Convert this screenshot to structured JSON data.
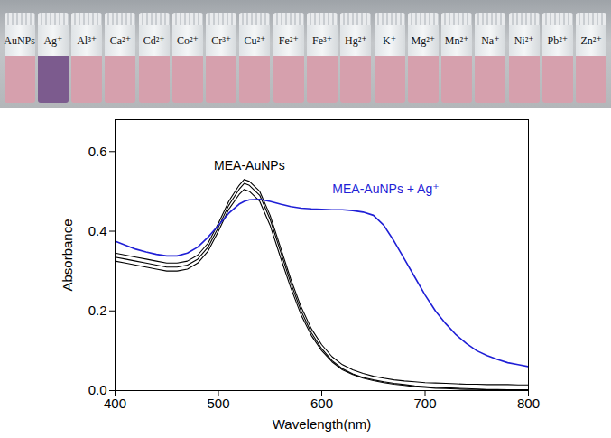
{
  "vials": {
    "labels": [
      "AuNPs",
      "Ag⁺",
      "Al³⁺",
      "Ca²⁺",
      "Cd²⁺",
      "Co²⁺",
      "Cr³⁺",
      "Cu²⁺",
      "Fe²⁺",
      "Fe³⁺",
      "Hg²⁺",
      "K⁺",
      "Mg²⁺",
      "Mn²⁺",
      "Na⁺",
      "Ni²⁺",
      "Pb²⁺",
      "Zn²⁺"
    ],
    "colors": [
      "#d6a0ad",
      "#7c5b8e",
      "#d6a0ad",
      "#d6a0ad",
      "#d6a0ad",
      "#d6a0ad",
      "#d6a0ad",
      "#d6a0ad",
      "#d6a0ad",
      "#d6a0ad",
      "#d6a0ad",
      "#d6a0ad",
      "#d6a0ad",
      "#d6a0ad",
      "#d6a0ad",
      "#d6a0ad",
      "#d6a0ad",
      "#d6a0ad"
    ]
  },
  "chart_data": {
    "type": "line",
    "x_label": "Wavelength(nm)",
    "y_label": "Absorbance",
    "x": [
      400,
      410,
      420,
      430,
      440,
      450,
      460,
      470,
      480,
      490,
      500,
      510,
      520,
      525,
      530,
      540,
      550,
      560,
      570,
      580,
      590,
      600,
      610,
      620,
      630,
      640,
      650,
      660,
      670,
      680,
      690,
      700,
      710,
      720,
      730,
      740,
      750,
      760,
      770,
      780,
      790,
      800
    ],
    "series": [
      {
        "color": "#000000",
        "values": [
          0.335,
          0.33,
          0.325,
          0.32,
          0.315,
          0.31,
          0.31,
          0.315,
          0.33,
          0.36,
          0.41,
          0.465,
          0.505,
          0.52,
          0.515,
          0.49,
          0.43,
          0.35,
          0.27,
          0.2,
          0.145,
          0.105,
          0.075,
          0.055,
          0.042,
          0.033,
          0.027,
          0.022,
          0.018,
          0.015,
          0.012,
          0.01,
          0.008,
          0.007,
          0.006,
          0.005,
          0.004,
          0.003,
          0.003,
          0.002,
          0.002,
          0.002
        ]
      },
      {
        "color": "#000000",
        "values": [
          0.345,
          0.34,
          0.335,
          0.33,
          0.325,
          0.32,
          0.32,
          0.325,
          0.34,
          0.37,
          0.42,
          0.475,
          0.515,
          0.53,
          0.525,
          0.5,
          0.44,
          0.36,
          0.28,
          0.21,
          0.155,
          0.115,
          0.085,
          0.065,
          0.052,
          0.043,
          0.036,
          0.031,
          0.027,
          0.024,
          0.022,
          0.02,
          0.019,
          0.018,
          0.017,
          0.016,
          0.016,
          0.015,
          0.015,
          0.015,
          0.014,
          0.014
        ]
      },
      {
        "color": "#000000",
        "values": [
          0.325,
          0.32,
          0.315,
          0.31,
          0.305,
          0.3,
          0.3,
          0.305,
          0.32,
          0.35,
          0.4,
          0.455,
          0.492,
          0.505,
          0.5,
          0.475,
          0.415,
          0.335,
          0.258,
          0.19,
          0.138,
          0.1,
          0.072,
          0.052,
          0.04,
          0.031,
          0.025,
          0.02,
          0.016,
          0.013,
          0.01,
          0.008,
          0.006,
          0.005,
          0.004,
          0.003,
          0.003,
          0.002,
          0.002,
          0.001,
          0.001,
          0.001
        ]
      },
      {
        "color": "#1f1fd6",
        "values": [
          0.375,
          0.365,
          0.355,
          0.348,
          0.342,
          0.338,
          0.338,
          0.345,
          0.36,
          0.385,
          0.415,
          0.445,
          0.468,
          0.475,
          0.479,
          0.48,
          0.475,
          0.468,
          0.462,
          0.458,
          0.456,
          0.455,
          0.454,
          0.454,
          0.452,
          0.448,
          0.44,
          0.415,
          0.375,
          0.33,
          0.285,
          0.24,
          0.2,
          0.168,
          0.14,
          0.118,
          0.1,
          0.088,
          0.078,
          0.07,
          0.065,
          0.06
        ]
      }
    ],
    "annotations": [
      {
        "text": "MEA-AuNPs",
        "x": 530,
        "y": 0.565,
        "color": "#000000"
      },
      {
        "text": "MEA-AuNPs + Ag⁺",
        "x": 662,
        "y": 0.505,
        "color": "#1f1fd6"
      }
    ],
    "xlim": [
      400,
      800
    ],
    "xticks": [
      400,
      500,
      600,
      700,
      800
    ],
    "ylim": [
      0,
      0.68
    ],
    "yticks": [
      {
        "value": 0,
        "label": "0.0"
      },
      {
        "value": 0.2,
        "label": "0.2"
      },
      {
        "value": 0.4,
        "label": "0.4"
      },
      {
        "value": 0.6,
        "label": "0.6"
      }
    ],
    "grid": false
  }
}
